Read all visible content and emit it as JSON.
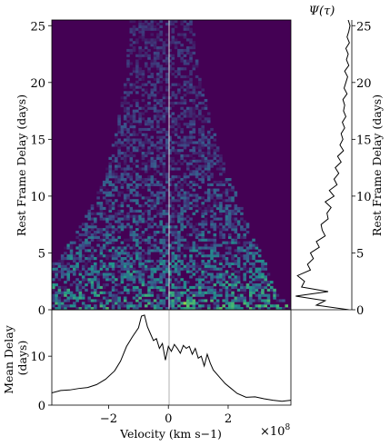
{
  "chart_data": [
    {
      "panel": "transfer-function-heatmap",
      "type": "heatmap",
      "ylabel": "Rest Frame Delay (days)",
      "xlim": [
        -390000000.0,
        410000000.0
      ],
      "ylim": [
        0,
        25.5
      ],
      "xticks": [
        -2,
        0,
        2
      ],
      "yticks": [
        0,
        5,
        10,
        15,
        20,
        25
      ],
      "colormap": [
        "#440154",
        "#3b528b",
        "#21918c",
        "#5ec962",
        "#fde725"
      ],
      "envelope_note": "",
      "envelope": {
        "delay": [
          0,
          2,
          4,
          6,
          8,
          10,
          12,
          15,
          18,
          21,
          25.5
        ],
        "v_min": [
          -390000000.0,
          -390000000.0,
          -390000000.0,
          -330000000.0,
          -280000000.0,
          -240000000.0,
          -210000000.0,
          -180000000.0,
          -160000000.0,
          -140000000.0,
          -130000000.0
        ],
        "v_max": [
          410000000.0,
          350000000.0,
          330000000.0,
          290000000.0,
          260000000.0,
          230000000.0,
          200000000.0,
          160000000.0,
          130000000.0,
          100000000.0,
          80000000.0
        ]
      },
      "hotspots": [
        {
          "v": 60000000.0,
          "delay": 0.4,
          "level": 1.0
        },
        {
          "v": 210000000.0,
          "delay": 0.3,
          "level": 0.85
        },
        {
          "v": -330000000.0,
          "delay": 3.0,
          "level": 0.55
        },
        {
          "v": 120000000.0,
          "delay": 1.5,
          "level": 0.6
        },
        {
          "v": -150000000.0,
          "delay": 4.5,
          "level": 0.5
        }
      ]
    },
    {
      "panel": "delay-distribution",
      "type": "line",
      "title": "Ψ(τ)",
      "ylabel": "Rest Frame Delay (days)",
      "ylim": [
        0,
        25.5
      ],
      "yticks": [
        0,
        5,
        10,
        15,
        20,
        25
      ],
      "delay": [
        0.0,
        0.4,
        0.8,
        1.2,
        1.6,
        2.0,
        2.5,
        3.0,
        3.5,
        4.0,
        4.5,
        5.0,
        5.5,
        6.0,
        6.5,
        7.0,
        7.5,
        8.0,
        8.5,
        9.0,
        9.5,
        10.0,
        10.5,
        11.0,
        11.5,
        12.0,
        12.5,
        13.0,
        13.5,
        14.0,
        14.5,
        15.0,
        15.5,
        16.0,
        16.5,
        17.0,
        17.5,
        18.0,
        18.5,
        19.0,
        19.5,
        20.0,
        20.5,
        21.0,
        21.5,
        22.0,
        22.5,
        23.0,
        23.5,
        24.0,
        24.5,
        25.0,
        25.5
      ],
      "psi": [
        0.95,
        0.4,
        0.55,
        0.05,
        0.6,
        0.15,
        0.2,
        0.08,
        0.3,
        0.25,
        0.35,
        0.3,
        0.45,
        0.4,
        0.55,
        0.5,
        0.48,
        0.6,
        0.58,
        0.65,
        0.55,
        0.7,
        0.62,
        0.75,
        0.7,
        0.78,
        0.72,
        0.82,
        0.76,
        0.86,
        0.8,
        0.85,
        0.82,
        0.88,
        0.84,
        0.9,
        0.86,
        0.88,
        0.85,
        0.92,
        0.87,
        0.9,
        0.93,
        0.88,
        0.95,
        0.91,
        0.94,
        0.9,
        0.96,
        0.92,
        0.95,
        0.97,
        0.94
      ]
    },
    {
      "panel": "mean-delay",
      "type": "line",
      "xlabel": "Velocity (km s−1)",
      "ylabel": "Mean Delay\n(days)",
      "x_multiplier": "×10",
      "x_multiplier_exp": "8",
      "xlim": [
        -390000000.0,
        410000000.0
      ],
      "ylim": [
        0,
        19.5
      ],
      "xticks": [
        -2,
        0,
        2
      ],
      "yticks": [
        0,
        10
      ],
      "x": [
        -390000000.0,
        -360000000.0,
        -330000000.0,
        -300000000.0,
        -270000000.0,
        -240000000.0,
        -210000000.0,
        -180000000.0,
        -160000000.0,
        -140000000.0,
        -120000000.0,
        -100000000.0,
        -90000000.0,
        -80000000.0,
        -70000000.0,
        -60000000.0,
        -50000000.0,
        -40000000.0,
        -30000000.0,
        -20000000.0,
        -10000000.0,
        0.0,
        10000000.0,
        20000000.0,
        30000000.0,
        40000000.0,
        50000000.0,
        60000000.0,
        70000000.0,
        80000000.0,
        90000000.0,
        100000000.0,
        110000000.0,
        120000000.0,
        130000000.0,
        140000000.0,
        150000000.0,
        170000000.0,
        190000000.0,
        210000000.0,
        230000000.0,
        260000000.0,
        290000000.0,
        320000000.0,
        350000000.0,
        380000000.0,
        410000000.0
      ],
      "y": [
        2.5,
        3.0,
        3.1,
        3.4,
        3.6,
        4.2,
        5.3,
        7.0,
        9.0,
        12.0,
        14.0,
        15.8,
        18.2,
        18.4,
        16.0,
        14.6,
        13.2,
        13.6,
        11.6,
        12.6,
        9.2,
        12.0,
        11.0,
        12.4,
        11.6,
        10.6,
        12.2,
        11.6,
        12.0,
        10.4,
        11.6,
        9.6,
        10.0,
        8.0,
        10.4,
        8.6,
        7.2,
        5.8,
        4.4,
        3.4,
        2.4,
        1.6,
        1.7,
        1.3,
        1.0,
        0.8,
        1.0
      ]
    }
  ]
}
